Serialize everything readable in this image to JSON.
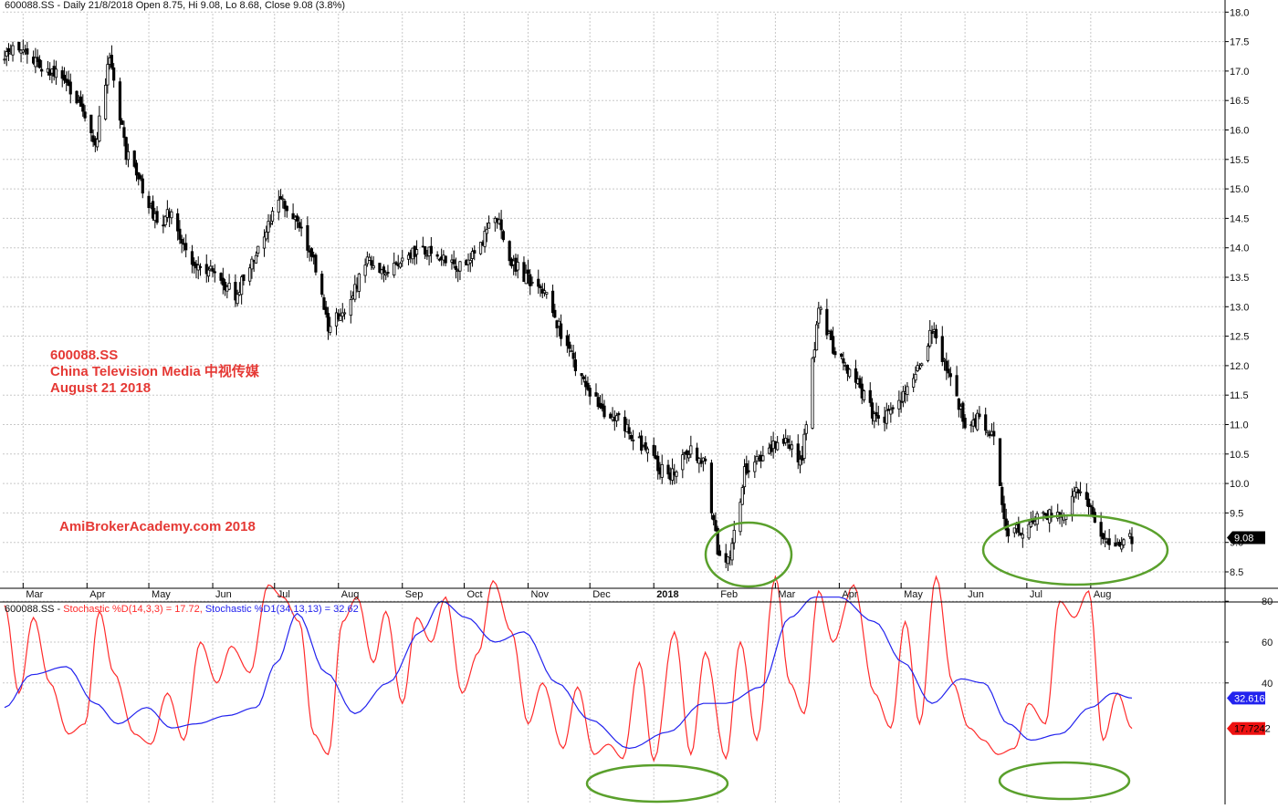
{
  "header_price": {
    "symbol": "600088.SS",
    "text": " - Daily 21/8/2018 Open 8.75, Hi 9.08, Lo 8.68, Close 9.08 (3.8%)"
  },
  "header_indicator": {
    "prefix": "600088.SS - ",
    "stoch1": "Stochastic %D(14,3,3) = 17.72,",
    "stoch2": " Stochastic %D1(34,13,13) = 32.62"
  },
  "annotations": {
    "line1": "600088.SS",
    "line2": "China Television Media  中视传媒",
    "line3": "August 21 2018",
    "watermark": "AmiBrokerAcademy.com  2018"
  },
  "colors": {
    "stoch_d": "#ff2b2b",
    "stoch_d1": "#2222ee",
    "ellipse": "#5aa02c",
    "annotation": "#e53935",
    "grid": "#c8c8c8",
    "candle": "#000000"
  },
  "chart_data": [
    {
      "type": "candlestick",
      "series_name": "600088.SS",
      "ylim": [
        8.0,
        18.2
      ],
      "yticks": [
        "8.5",
        "9.0",
        "9.5",
        "10.0",
        "10.5",
        "11.0",
        "11.5",
        "12.0",
        "12.5",
        "13.0",
        "13.5",
        "14.0",
        "14.5",
        "15.0",
        "15.5",
        "16.0",
        "16.5",
        "17.0",
        "17.5",
        "18.0"
      ],
      "x_labels": [
        "Mar",
        "Apr",
        "May",
        "Jun",
        "Jul",
        "Aug",
        "Sep",
        "Oct",
        "Nov",
        "Dec",
        "2018",
        "Feb",
        "Mar",
        "Apr",
        "May",
        "Jun",
        "Jul",
        "Aug"
      ],
      "last_value_label": "9.08",
      "close_keypoints": [
        [
          "2017-02-20",
          17.3
        ],
        [
          "2017-03-01",
          17.4
        ],
        [
          "2017-03-08",
          17.1
        ],
        [
          "2017-03-20",
          16.9
        ],
        [
          "2017-03-28",
          16.4
        ],
        [
          "2017-04-05",
          15.7
        ],
        [
          "2017-04-12",
          17.3
        ],
        [
          "2017-04-20",
          15.6
        ],
        [
          "2017-04-28",
          15.0
        ],
        [
          "2017-05-05",
          14.4
        ],
        [
          "2017-05-12",
          14.6
        ],
        [
          "2017-05-22",
          13.7
        ],
        [
          "2017-06-01",
          13.6
        ],
        [
          "2017-06-12",
          13.2
        ],
        [
          "2017-06-22",
          13.9
        ],
        [
          "2017-07-03",
          14.8
        ],
        [
          "2017-07-12",
          14.5
        ],
        [
          "2017-07-20",
          13.8
        ],
        [
          "2017-07-27",
          12.6
        ],
        [
          "2017-08-08",
          13.2
        ],
        [
          "2017-08-15",
          13.9
        ],
        [
          "2017-08-24",
          13.5
        ],
        [
          "2017-09-05",
          13.9
        ],
        [
          "2017-09-15",
          14.0
        ],
        [
          "2017-09-22",
          13.8
        ],
        [
          "2017-09-29",
          13.7
        ],
        [
          "2017-10-10",
          14.1
        ],
        [
          "2017-10-16",
          14.6
        ],
        [
          "2017-10-23",
          13.8
        ],
        [
          "2017-10-31",
          13.5
        ],
        [
          "2017-11-10",
          13.2
        ],
        [
          "2017-11-20",
          12.3
        ],
        [
          "2017-11-30",
          11.6
        ],
        [
          "2017-12-08",
          11.2
        ],
        [
          "2017-12-18",
          11.0
        ],
        [
          "2017-12-27",
          10.6
        ],
        [
          "2018-01-08",
          10.1
        ],
        [
          "2018-01-18",
          10.6
        ],
        [
          "2018-01-26",
          10.3
        ],
        [
          "2018-02-01",
          8.9
        ],
        [
          "2018-02-07",
          8.7
        ],
        [
          "2018-02-14",
          10.2
        ],
        [
          "2018-02-26",
          10.6
        ],
        [
          "2018-03-06",
          10.7
        ],
        [
          "2018-03-14",
          10.4
        ],
        [
          "2018-03-22",
          13.0
        ],
        [
          "2018-03-30",
          12.2
        ],
        [
          "2018-04-10",
          11.7
        ],
        [
          "2018-04-20",
          11.0
        ],
        [
          "2018-04-27",
          11.3
        ],
        [
          "2018-05-08",
          11.8
        ],
        [
          "2018-05-16",
          12.6
        ],
        [
          "2018-05-23",
          12.0
        ],
        [
          "2018-06-01",
          11.0
        ],
        [
          "2018-06-08",
          11.1
        ],
        [
          "2018-06-15",
          10.8
        ],
        [
          "2018-06-21",
          9.2
        ],
        [
          "2018-06-28",
          9.2
        ],
        [
          "2018-07-05",
          9.4
        ],
        [
          "2018-07-13",
          9.5
        ],
        [
          "2018-07-20",
          9.5
        ],
        [
          "2018-07-26",
          9.9
        ],
        [
          "2018-08-01",
          9.6
        ],
        [
          "2018-08-07",
          9.0
        ],
        [
          "2018-08-14",
          8.9
        ],
        [
          "2018-08-21",
          9.08
        ]
      ]
    },
    {
      "type": "line",
      "ylim": [
        0,
        100
      ],
      "yticks": [
        "40",
        "60",
        "80"
      ],
      "series": [
        {
          "name": "Stochastic %D(14,3,3)",
          "last_value_label": "17.7242",
          "keypoints": [
            [
              "2017-02-20",
              78
            ],
            [
              "2017-02-27",
              35
            ],
            [
              "2017-03-06",
              72
            ],
            [
              "2017-03-14",
              40
            ],
            [
              "2017-03-23",
              15
            ],
            [
              "2017-03-31",
              20
            ],
            [
              "2017-04-07",
              75
            ],
            [
              "2017-04-14",
              45
            ],
            [
              "2017-04-24",
              15
            ],
            [
              "2017-05-02",
              10
            ],
            [
              "2017-05-10",
              35
            ],
            [
              "2017-05-18",
              12
            ],
            [
              "2017-05-26",
              60
            ],
            [
              "2017-06-03",
              40
            ],
            [
              "2017-06-10",
              58
            ],
            [
              "2017-06-19",
              45
            ],
            [
              "2017-06-28",
              88
            ],
            [
              "2017-07-05",
              82
            ],
            [
              "2017-07-13",
              70
            ],
            [
              "2017-07-20",
              15
            ],
            [
              "2017-07-27",
              5
            ],
            [
              "2017-08-03",
              70
            ],
            [
              "2017-08-10",
              82
            ],
            [
              "2017-08-18",
              50
            ],
            [
              "2017-08-24",
              75
            ],
            [
              "2017-09-01",
              30
            ],
            [
              "2017-09-08",
              72
            ],
            [
              "2017-09-15",
              60
            ],
            [
              "2017-09-22",
              82
            ],
            [
              "2017-09-30",
              35
            ],
            [
              "2017-10-08",
              55
            ],
            [
              "2017-10-15",
              90
            ],
            [
              "2017-10-24",
              65
            ],
            [
              "2017-11-01",
              20
            ],
            [
              "2017-11-08",
              40
            ],
            [
              "2017-11-18",
              8
            ],
            [
              "2017-11-25",
              38
            ],
            [
              "2017-12-03",
              5
            ],
            [
              "2017-12-10",
              10
            ],
            [
              "2017-12-17",
              3
            ],
            [
              "2017-12-25",
              50
            ],
            [
              "2018-01-01",
              2
            ],
            [
              "2018-01-11",
              65
            ],
            [
              "2018-01-19",
              5
            ],
            [
              "2018-01-26",
              55
            ],
            [
              "2018-02-05",
              3
            ],
            [
              "2018-02-12",
              60
            ],
            [
              "2018-02-20",
              12
            ],
            [
              "2018-03-01",
              92
            ],
            [
              "2018-03-08",
              40
            ],
            [
              "2018-03-15",
              25
            ],
            [
              "2018-03-22",
              85
            ],
            [
              "2018-03-29",
              60
            ],
            [
              "2018-04-08",
              88
            ],
            [
              "2018-04-18",
              35
            ],
            [
              "2018-04-26",
              18
            ],
            [
              "2018-05-03",
              70
            ],
            [
              "2018-05-10",
              20
            ],
            [
              "2018-05-18",
              92
            ],
            [
              "2018-05-26",
              40
            ],
            [
              "2018-06-03",
              18
            ],
            [
              "2018-06-10",
              12
            ],
            [
              "2018-06-17",
              5
            ],
            [
              "2018-06-25",
              8
            ],
            [
              "2018-07-02",
              30
            ],
            [
              "2018-07-10",
              20
            ],
            [
              "2018-07-17",
              80
            ],
            [
              "2018-07-24",
              72
            ],
            [
              "2018-07-31",
              85
            ],
            [
              "2018-08-07",
              12
            ],
            [
              "2018-08-14",
              35
            ],
            [
              "2018-08-21",
              17.72
            ]
          ]
        },
        {
          "name": "Stochastic %D1(34,13,13)",
          "last_value_label": "32.6162",
          "keypoints": [
            [
              "2017-02-20",
              28
            ],
            [
              "2017-03-05",
              44
            ],
            [
              "2017-03-22",
              48
            ],
            [
              "2017-04-05",
              30
            ],
            [
              "2017-04-16",
              20
            ],
            [
              "2017-04-30",
              28
            ],
            [
              "2017-05-12",
              18
            ],
            [
              "2017-05-24",
              20
            ],
            [
              "2017-06-08",
              24
            ],
            [
              "2017-06-22",
              28
            ],
            [
              "2017-07-02",
              50
            ],
            [
              "2017-07-12",
              74
            ],
            [
              "2017-07-26",
              45
            ],
            [
              "2017-08-09",
              25
            ],
            [
              "2017-08-25",
              40
            ],
            [
              "2017-09-10",
              65
            ],
            [
              "2017-09-20",
              80
            ],
            [
              "2017-10-02",
              72
            ],
            [
              "2017-10-16",
              60
            ],
            [
              "2017-10-30",
              65
            ],
            [
              "2017-11-15",
              40
            ],
            [
              "2017-12-01",
              22
            ],
            [
              "2017-12-20",
              8
            ],
            [
              "2018-01-08",
              16
            ],
            [
              "2018-01-25",
              30
            ],
            [
              "2018-02-05",
              30
            ],
            [
              "2018-02-22",
              38
            ],
            [
              "2018-03-08",
              72
            ],
            [
              "2018-03-20",
              82
            ],
            [
              "2018-04-01",
              82
            ],
            [
              "2018-04-18",
              70
            ],
            [
              "2018-05-02",
              50
            ],
            [
              "2018-05-16",
              30
            ],
            [
              "2018-05-30",
              42
            ],
            [
              "2018-06-10",
              40
            ],
            [
              "2018-06-22",
              20
            ],
            [
              "2018-07-03",
              12
            ],
            [
              "2018-07-17",
              15
            ],
            [
              "2018-08-01",
              28
            ],
            [
              "2018-08-12",
              35
            ],
            [
              "2018-08-21",
              32.62
            ]
          ]
        }
      ]
    }
  ]
}
